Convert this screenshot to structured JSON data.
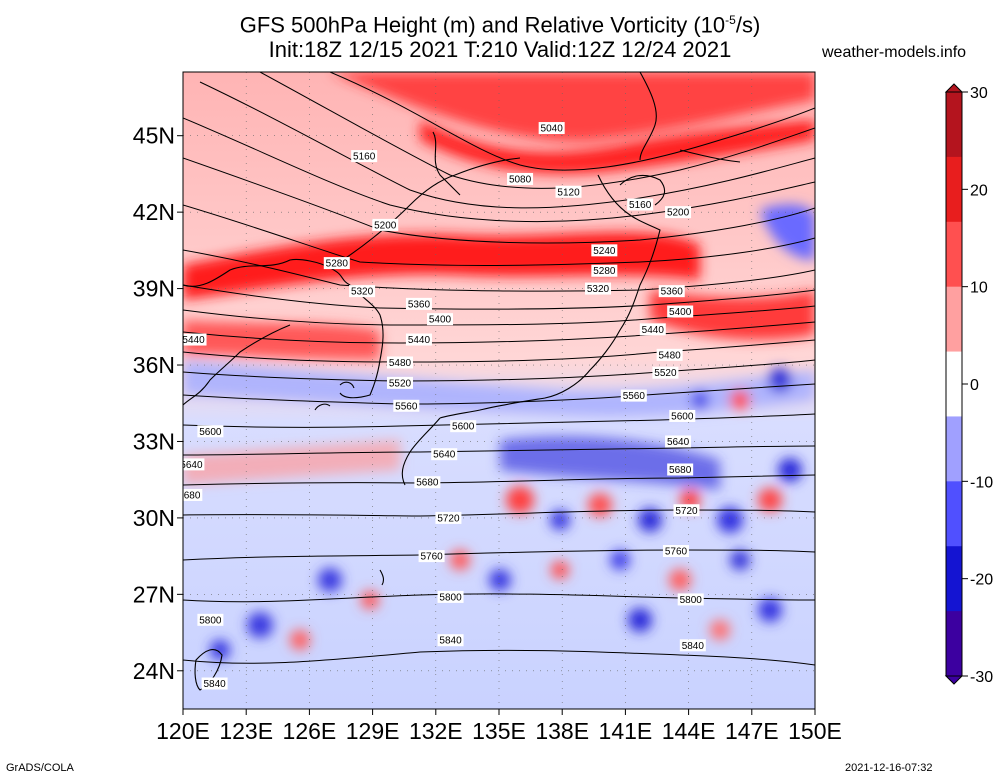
{
  "title": {
    "line1": "GFS 500hPa Height (m) and Relative Vorticity (10",
    "line1_sup": "-5",
    "line1_end": "/s)",
    "line2": "Init:18Z 12/15 2021 T:210 Valid:12Z 12/24 2021"
  },
  "site": "weather-models.info",
  "footer": {
    "left": "GrADS/COLA",
    "right": "2021-12-16-07:32"
  },
  "map": {
    "lon_range": [
      120,
      150
    ],
    "lat_range": [
      22.5,
      47.5
    ],
    "lon_ticks": [
      "120E",
      "123E",
      "126E",
      "129E",
      "132E",
      "135E",
      "138E",
      "141E",
      "144E",
      "147E",
      "150E"
    ],
    "lat_ticks": [
      "24N",
      "27N",
      "30N",
      "33N",
      "36N",
      "39N",
      "42N",
      "45N"
    ],
    "grid": "dotted",
    "colors": {
      "positive": "#e8000a",
      "negative": "#1a1ad0",
      "neutral": "#ffffff"
    }
  },
  "colorbar": {
    "ticks": [
      "30",
      "20",
      "10",
      "0",
      "-10",
      "-20",
      "-30"
    ],
    "colors": [
      "#b4141e",
      "#e81e1e",
      "#ff5050",
      "#ffa0a0",
      "#ffffff",
      "#a0a0ff",
      "#5050ff",
      "#1414d2",
      "#3c00a0"
    ]
  },
  "contours": [
    {
      "label": "5040",
      "lat": 45.3,
      "lon": 137.5
    },
    {
      "label": "5080",
      "lat": 43.3,
      "lon": 136.0
    },
    {
      "label": "5120",
      "lat": 42.8,
      "lon": 138.3
    },
    {
      "label": "5160",
      "lat": 44.2,
      "lon": 128.6
    },
    {
      "label": "5160",
      "lat": 42.3,
      "lon": 141.7
    },
    {
      "label": "5200",
      "lat": 41.5,
      "lon": 129.6
    },
    {
      "label": "5200",
      "lat": 42.0,
      "lon": 143.5
    },
    {
      "label": "5240",
      "lat": 40.5,
      "lon": 140.0
    },
    {
      "label": "5280",
      "lat": 40.0,
      "lon": 127.3
    },
    {
      "label": "5280",
      "lat": 39.7,
      "lon": 140.0
    },
    {
      "label": "5320",
      "lat": 38.9,
      "lon": 128.5
    },
    {
      "label": "5320",
      "lat": 39.0,
      "lon": 139.7
    },
    {
      "label": "5360",
      "lat": 38.4,
      "lon": 131.2
    },
    {
      "label": "5360",
      "lat": 38.9,
      "lon": 143.2
    },
    {
      "label": "5400",
      "lat": 37.8,
      "lon": 132.2
    },
    {
      "label": "5400",
      "lat": 38.1,
      "lon": 143.6
    },
    {
      "label": "5440",
      "lat": 37.0,
      "lon": 131.2
    },
    {
      "label": "5440",
      "lat": 37.4,
      "lon": 142.3
    },
    {
      "label": "5440",
      "lat": 37.0,
      "lon": 120.5
    },
    {
      "label": "5480",
      "lat": 36.1,
      "lon": 130.3
    },
    {
      "label": "5480",
      "lat": 36.4,
      "lon": 143.1
    },
    {
      "label": "5520",
      "lat": 35.3,
      "lon": 130.3
    },
    {
      "label": "5520",
      "lat": 35.7,
      "lon": 142.9
    },
    {
      "label": "5560",
      "lat": 34.4,
      "lon": 130.6
    },
    {
      "label": "5560",
      "lat": 34.8,
      "lon": 141.4
    },
    {
      "label": "5600",
      "lat": 33.4,
      "lon": 121.3
    },
    {
      "label": "5600",
      "lat": 33.6,
      "lon": 133.3
    },
    {
      "label": "5600",
      "lat": 34.0,
      "lon": 143.7
    },
    {
      "label": "5640",
      "lat": 32.1,
      "lon": 120.4
    },
    {
      "label": "5640",
      "lat": 32.5,
      "lon": 132.4
    },
    {
      "label": "5640",
      "lat": 33.0,
      "lon": 143.5
    },
    {
      "label": "5680",
      "lat": 30.9,
      "lon": 120.3
    },
    {
      "label": "5680",
      "lat": 31.4,
      "lon": 131.6
    },
    {
      "label": "5680",
      "lat": 31.9,
      "lon": 143.6
    },
    {
      "label": "5720",
      "lat": 30.0,
      "lon": 132.6
    },
    {
      "label": "5720",
      "lat": 30.3,
      "lon": 143.9
    },
    {
      "label": "5760",
      "lat": 28.5,
      "lon": 131.8
    },
    {
      "label": "5760",
      "lat": 28.7,
      "lon": 143.4
    },
    {
      "label": "5800",
      "lat": 26.0,
      "lon": 121.3
    },
    {
      "label": "5800",
      "lat": 26.9,
      "lon": 132.7
    },
    {
      "label": "5800",
      "lat": 26.8,
      "lon": 144.1
    },
    {
      "label": "5840",
      "lat": 25.2,
      "lon": 132.7
    },
    {
      "label": "5840",
      "lat": 25.0,
      "lon": 144.2
    },
    {
      "label": "5840",
      "lat": 23.5,
      "lon": 121.5
    }
  ]
}
